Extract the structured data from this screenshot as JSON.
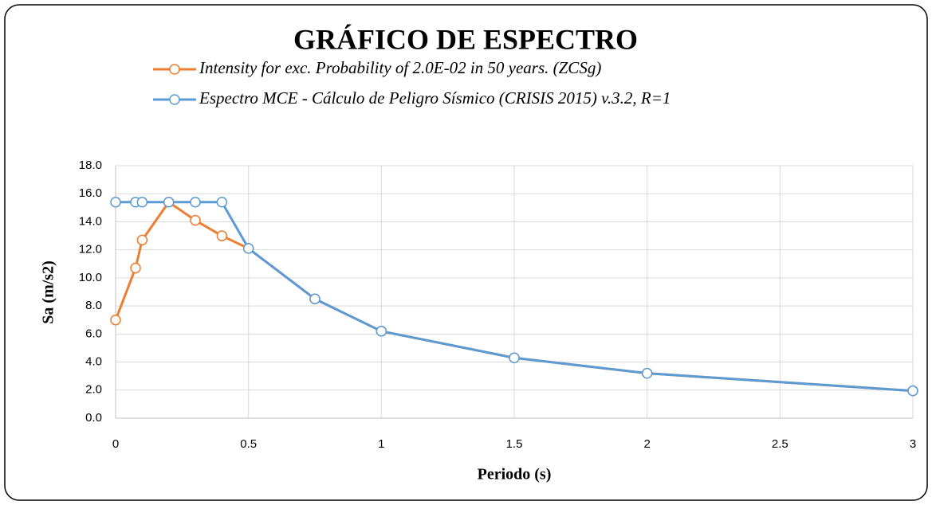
{
  "chart_data": {
    "type": "line",
    "title": "GRÁFICO DE ESPECTRO",
    "x_label": "Periodo (s)",
    "y_label": "Sa (m/s2)",
    "x": [
      0,
      0.075,
      0.1,
      0.2,
      0.3,
      0.4,
      0.5,
      0.75,
      1,
      1.5,
      2,
      3
    ],
    "series": [
      {
        "name": "Intensity for exc. Probability of 2.0E-02 in 50 years. (ZCSg)",
        "color": "#ed7d31",
        "values": [
          7.0,
          10.7,
          12.7,
          15.4,
          14.1,
          13.0,
          12.1,
          8.5,
          6.2,
          4.3,
          3.2,
          1.95
        ]
      },
      {
        "name": "Espectro MCE - Cálculo de Peligro Sísmico (CRISIS 2015) v.3.2, R=1",
        "color": "#5b9bd5",
        "values": [
          15.4,
          15.4,
          15.4,
          15.4,
          15.4,
          15.4,
          12.1,
          8.5,
          6.2,
          4.3,
          3.2,
          1.95
        ]
      }
    ],
    "xlim": [
      0,
      3
    ],
    "xticks": [
      0,
      0.5,
      1,
      1.5,
      2,
      2.5,
      3
    ],
    "ylim": [
      0,
      18
    ],
    "yticks": [
      {
        "value": 0,
        "label": "0.0"
      },
      {
        "value": 2,
        "label": "2.0"
      },
      {
        "value": 4,
        "label": "4.0"
      },
      {
        "value": 6,
        "label": "6.0"
      },
      {
        "value": 8,
        "label": "8.0"
      },
      {
        "value": 10,
        "label": "10.0"
      },
      {
        "value": 12,
        "label": "12.0"
      },
      {
        "value": 14,
        "label": "14.0"
      },
      {
        "value": 16,
        "label": "16.0"
      },
      {
        "value": 18,
        "label": "18.0"
      }
    ],
    "grid": true
  }
}
